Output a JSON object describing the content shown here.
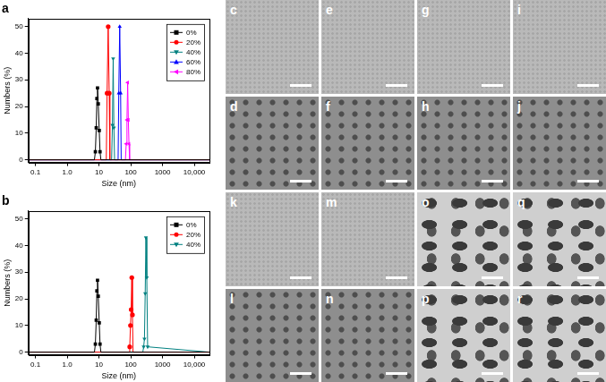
{
  "chart_data": [
    {
      "type": "line",
      "title": "a",
      "x_label": "Size (nm)",
      "y_label": "Numbers (%)",
      "log": "x",
      "grid": false,
      "legend": "upper right",
      "xlim": [
        0.06,
        30000
      ],
      "xticks": [
        0.1,
        {
          "value": 1,
          "label": "1.0"
        },
        10,
        100,
        1000,
        {
          "value": 10000,
          "label": "10,000"
        }
      ],
      "ylim": [
        -1,
        53
      ],
      "yticks": [
        0,
        10,
        20,
        30,
        40,
        50
      ],
      "series": [
        {
          "name": "0%",
          "color": "#000000",
          "marker": "square",
          "x": [
            0.06,
            7.2,
            7.7,
            8.2,
            8.6,
            9.0,
            9.5,
            10.2,
            10.8,
            11.5,
            30000
          ],
          "values": [
            0,
            0,
            3,
            12,
            23,
            27,
            21,
            11,
            3,
            0,
            0
          ]
        },
        {
          "name": "20%",
          "color": "#ff0000",
          "marker": "circle",
          "x": [
            0.06,
            17,
            18,
            19.5,
            21,
            22,
            30000
          ],
          "values": [
            0,
            0,
            25,
            50,
            25,
            0,
            0
          ]
        },
        {
          "name": "40%",
          "color": "#008080",
          "marker": "triangle_down",
          "x": [
            0.06,
            25,
            26.5,
            28,
            29.5,
            31,
            30000
          ],
          "values": [
            0,
            0,
            13,
            38,
            12,
            0,
            0
          ]
        },
        {
          "name": "60%",
          "color": "#0000ff",
          "marker": "triangle",
          "x": [
            0.06,
            40,
            42,
            45,
            48,
            50,
            30000
          ],
          "values": [
            0,
            0,
            25,
            50,
            25,
            0,
            0
          ]
        },
        {
          "name": "80%",
          "color": "#ff00ff",
          "marker": "triangle_left",
          "x": [
            0.06,
            68,
            72,
            76,
            80,
            84,
            88,
            92,
            30000
          ],
          "values": [
            0,
            0,
            6,
            15,
            29,
            15,
            6,
            0,
            0
          ]
        }
      ]
    },
    {
      "type": "line",
      "title": "b",
      "x_label": "Size (nm)",
      "y_label": "Numbers (%)",
      "log": "x",
      "grid": false,
      "legend": "upper right",
      "xlim": [
        0.06,
        30000
      ],
      "xticks": [
        0.1,
        {
          "value": 1,
          "label": "1.0"
        },
        10,
        100,
        1000,
        {
          "value": 10000,
          "label": "10,000"
        }
      ],
      "ylim": [
        -1,
        53
      ],
      "yticks": [
        0,
        10,
        20,
        30,
        40,
        50
      ],
      "series": [
        {
          "name": "0%",
          "color": "#000000",
          "marker": "square",
          "x": [
            0.06,
            7.2,
            7.7,
            8.2,
            8.6,
            9.0,
            9.5,
            10.2,
            10.8,
            11.5,
            30000
          ],
          "values": [
            0,
            0,
            3,
            12,
            23,
            27,
            21,
            11,
            3,
            0,
            0
          ]
        },
        {
          "name": "20%",
          "color": "#ff0000",
          "marker": "circle",
          "x": [
            0.06,
            88,
            93,
            98,
            103,
            108,
            113,
            118,
            30000
          ],
          "values": [
            0,
            0,
            2,
            10,
            16,
            28,
            14,
            0,
            0
          ]
        },
        {
          "name": "40%",
          "color": "#008080",
          "marker": "triangle_down",
          "x": [
            0.06,
            240,
            255,
            270,
            285,
            300,
            320,
            340,
            30000
          ],
          "values": [
            0,
            0,
            2,
            5,
            22,
            43,
            28,
            2,
            0
          ]
        }
      ]
    }
  ],
  "image_panels": {
    "rows": [
      [
        "c",
        "e",
        "g",
        "i"
      ],
      [
        "d",
        "f",
        "h",
        "j"
      ],
      [
        "k",
        "m",
        "o",
        "q"
      ],
      [
        "l",
        "n",
        "p",
        "r"
      ]
    ]
  }
}
